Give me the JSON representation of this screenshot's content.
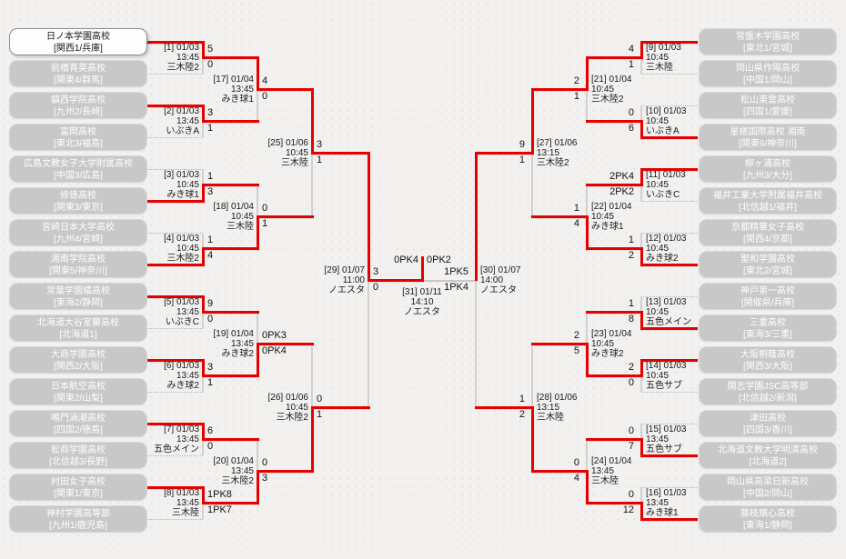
{
  "colors": {
    "winner_line": "#e60000",
    "loser_line": "#b3b3b3",
    "team_box": "#c8c8c8",
    "champion_box": "#fdfdfd",
    "background": "#f2f1f0"
  },
  "tournament": {
    "final": {
      "header": "[31] 01/11",
      "time": "14:10",
      "venue": "ノエスタ",
      "score_left": "0PK4",
      "score_right": "0PK2",
      "winner": "left"
    },
    "left": {
      "teams": [
        {
          "name": "日ノ本学園高校",
          "seed": "[関西1/兵庫]",
          "champion": true
        },
        {
          "name": "前橋育英高校",
          "seed": "[関東4/群馬]"
        },
        {
          "name": "鎮西学院高校",
          "seed": "[九州2/長崎]"
        },
        {
          "name": "富岡高校",
          "seed": "[東北3/福島]"
        },
        {
          "name": "広島文教女子大学附属高校",
          "seed": "[中国3/広島]"
        },
        {
          "name": "修徳高校",
          "seed": "[関東3/東京]"
        },
        {
          "name": "宮崎日本大学高校",
          "seed": "[九州4/宮崎]"
        },
        {
          "name": "湘南学院高校",
          "seed": "[関東5/神奈川]"
        },
        {
          "name": "常葉学園橘高校",
          "seed": "[東海2/静岡]"
        },
        {
          "name": "北海道大谷室蘭高校",
          "seed": "[北海道1]"
        },
        {
          "name": "大商学園高校",
          "seed": "[関西2/大阪]"
        },
        {
          "name": "日本航空高校",
          "seed": "[関東2/山梨]"
        },
        {
          "name": "鳴門渦潮高校",
          "seed": "[四国2/徳島]"
        },
        {
          "name": "松商学園高校",
          "seed": "[北信越3/長野]"
        },
        {
          "name": "村田女子高校",
          "seed": "[関東1/東京]"
        },
        {
          "name": "神村学園高等部",
          "seed": "[九州1/鹿児島]"
        }
      ],
      "rounds": [
        {
          "matches": [
            {
              "header": "[1] 01/03",
              "time": "13:45",
              "venue": "三木陸2",
              "score_top": "5",
              "score_bottom": "0",
              "winner": "top"
            },
            {
              "header": "[2] 01/03",
              "time": "13:45",
              "venue": "いぶきA",
              "score_top": "3",
              "score_bottom": "1",
              "winner": "top"
            },
            {
              "header": "[3] 01/03",
              "time": "10:45",
              "venue": "みき球1",
              "score_top": "1",
              "score_bottom": "3",
              "winner": "bottom"
            },
            {
              "header": "[4] 01/03",
              "time": "10:45",
              "venue": "三木陸2",
              "score_top": "1",
              "score_bottom": "4",
              "winner": "bottom"
            },
            {
              "header": "[5] 01/03",
              "time": "13:45",
              "venue": "いぶきC",
              "score_top": "9",
              "score_bottom": "0",
              "winner": "top"
            },
            {
              "header": "[6] 01/03",
              "time": "13:45",
              "venue": "みき球2",
              "score_top": "3",
              "score_bottom": "1",
              "winner": "top"
            },
            {
              "header": "[7] 01/03",
              "time": "13:45",
              "venue": "五色メイン",
              "score_top": "6",
              "score_bottom": "0",
              "winner": "top"
            },
            {
              "header": "[8] 01/03",
              "time": "13:45",
              "venue": "三木陸",
              "score_top": "1PK8",
              "score_bottom": "1PK7",
              "winner": "top"
            }
          ]
        },
        {
          "matches": [
            {
              "header": "[17] 01/04",
              "time": "13:45",
              "venue": "みき球1",
              "score_top": "4",
              "score_bottom": "0",
              "winner": "top"
            },
            {
              "header": "[18] 01/04",
              "time": "10:45",
              "venue": "三木陸",
              "score_top": "0",
              "score_bottom": "1",
              "winner": "bottom"
            },
            {
              "header": "[19] 01/04",
              "time": "13:45",
              "venue": "みき球2",
              "score_top": "0PK3",
              "score_bottom": "0PK4",
              "winner": "bottom"
            },
            {
              "header": "[20] 01/04",
              "time": "13:45",
              "venue": "三木陸2",
              "score_top": "0",
              "score_bottom": "3",
              "winner": "bottom"
            }
          ]
        },
        {
          "matches": [
            {
              "header": "[25] 01/06",
              "time": "10:45",
              "venue": "三木陸",
              "score_top": "3",
              "score_bottom": "1",
              "winner": "top"
            },
            {
              "header": "[26] 01/06",
              "time": "10:45",
              "venue": "三木陸2",
              "score_top": "0",
              "score_bottom": "1",
              "winner": "bottom"
            }
          ]
        },
        {
          "matches": [
            {
              "header": "[29] 01/07",
              "time": "11:00",
              "venue": "ノエスタ",
              "score_top": "3",
              "score_bottom": "0",
              "winner": "top"
            }
          ]
        }
      ]
    },
    "right": {
      "teams": [
        {
          "name": "常盤木学園高校",
          "seed": "[東北1/宮城]"
        },
        {
          "name": "岡山県作陽高校",
          "seed": "[中国1/岡山]"
        },
        {
          "name": "松山東雲高校",
          "seed": "[四国1/愛媛]"
        },
        {
          "name": "星槎国際高校 湘南",
          "seed": "[関東6/神奈川]"
        },
        {
          "name": "柳ヶ浦高校",
          "seed": "[九州3/大分]"
        },
        {
          "name": "福井工業大学附属福井高校",
          "seed": "[北信越1/福井]"
        },
        {
          "name": "京都精華女子高校",
          "seed": "[関西4/京都]"
        },
        {
          "name": "聖和学園高校",
          "seed": "[東北2/宮城]"
        },
        {
          "name": "神戸第一高校",
          "seed": "[開催県/兵庫]"
        },
        {
          "name": "三重高校",
          "seed": "[東海3/三重]"
        },
        {
          "name": "大阪桐蔭高校",
          "seed": "[関西3/大阪]"
        },
        {
          "name": "開志学園JSC高等部",
          "seed": "[北信越2/新潟]"
        },
        {
          "name": "津田高校",
          "seed": "[四国3/香川]"
        },
        {
          "name": "北海道文教大学明清高校",
          "seed": "[北海道2]"
        },
        {
          "name": "岡山県高梁日新高校",
          "seed": "[中国2/岡山]"
        },
        {
          "name": "藤枝順心高校",
          "seed": "[東海1/静岡]"
        }
      ],
      "rounds": [
        {
          "matches": [
            {
              "header": "[9] 01/03",
              "time": "10:45",
              "venue": "三木陸",
              "score_top": "4",
              "score_bottom": "1",
              "winner": "top"
            },
            {
              "header": "[10] 01/03",
              "time": "10:45",
              "venue": "いぶきA",
              "score_top": "0",
              "score_bottom": "6",
              "winner": "bottom"
            },
            {
              "header": "[11] 01/03",
              "time": "10:45",
              "venue": "いぶきC",
              "score_top": "2PK4",
              "score_bottom": "2PK2",
              "winner": "top"
            },
            {
              "header": "[12] 01/03",
              "time": "10:45",
              "venue": "みき球2",
              "score_top": "1",
              "score_bottom": "2",
              "winner": "bottom"
            },
            {
              "header": "[13] 01/03",
              "time": "10:45",
              "venue": "五色メイン",
              "score_top": "1",
              "score_bottom": "8",
              "winner": "bottom"
            },
            {
              "header": "[14] 01/03",
              "time": "10:45",
              "venue": "五色サブ",
              "score_top": "2",
              "score_bottom": "0",
              "winner": "top"
            },
            {
              "header": "[15] 01/03",
              "time": "13:45",
              "venue": "五色サブ",
              "score_top": "0",
              "score_bottom": "7",
              "winner": "bottom"
            },
            {
              "header": "[16] 01/03",
              "time": "13:45",
              "venue": "みき球1",
              "score_top": "0",
              "score_bottom": "12",
              "winner": "bottom"
            }
          ]
        },
        {
          "matches": [
            {
              "header": "[21] 01/04",
              "time": "10:45",
              "venue": "三木陸2",
              "score_top": "2",
              "score_bottom": "1",
              "winner": "top"
            },
            {
              "header": "[22] 01/04",
              "time": "10:45",
              "venue": "みき球1",
              "score_top": "1",
              "score_bottom": "4",
              "winner": "bottom"
            },
            {
              "header": "[23] 01/04",
              "time": "10:45",
              "venue": "みき球2",
              "score_top": "2",
              "score_bottom": "5",
              "winner": "bottom"
            },
            {
              "header": "[24] 01/04",
              "time": "13:45",
              "venue": "三木陸",
              "score_top": "0",
              "score_bottom": "4",
              "winner": "bottom"
            }
          ]
        },
        {
          "matches": [
            {
              "header": "[27] 01/06",
              "time": "13:15",
              "venue": "三木陸2",
              "score_top": "9",
              "score_bottom": "1",
              "winner": "top"
            },
            {
              "header": "[28] 01/06",
              "time": "13:15",
              "venue": "三木陸",
              "score_top": "1",
              "score_bottom": "2",
              "winner": "bottom"
            }
          ]
        },
        {
          "matches": [
            {
              "header": "[30] 01/07",
              "time": "14:00",
              "venue": "ノエスタ",
              "score_top": "1PK5",
              "score_bottom": "1PK4",
              "winner": "top"
            }
          ]
        }
      ]
    }
  }
}
